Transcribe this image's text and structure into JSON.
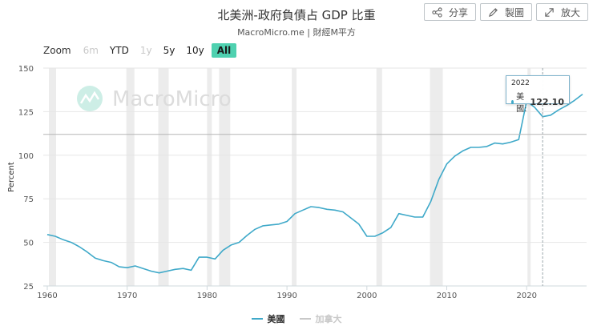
{
  "header": {
    "title": "北美洲-政府負債占 GDP 比重",
    "subtitle": "MacroMicro.me | 財經M平方"
  },
  "toolbar": {
    "share_label": "分享",
    "draw_label": "製圖",
    "expand_label": "放大"
  },
  "zoom": {
    "label": "Zoom",
    "options": [
      {
        "label": "6m",
        "state": "disabled"
      },
      {
        "label": "YTD",
        "state": "normal"
      },
      {
        "label": "1y",
        "state": "disabled"
      },
      {
        "label": "5y",
        "state": "normal"
      },
      {
        "label": "10y",
        "state": "normal"
      },
      {
        "label": "All",
        "state": "active"
      }
    ]
  },
  "watermark": "MacroMicro",
  "tooltip": {
    "year": "2022",
    "series_label": "美國:",
    "value": "122.10"
  },
  "colors": {
    "series_us": "#3fa9c9",
    "series_ca": "#c8c8c8",
    "recession": "#ececec",
    "accent": "#4fd1b0"
  },
  "chart_data": {
    "type": "line",
    "title": "北美洲-政府負債占 GDP 比重",
    "xlabel": "",
    "ylabel": "Percent",
    "xlim": [
      1959.5,
      2027.5
    ],
    "ylim": [
      25,
      150
    ],
    "yticks": [
      25,
      50,
      75,
      100,
      125,
      150
    ],
    "xticks": [
      1960,
      1970,
      1980,
      1990,
      2000,
      2010,
      2020
    ],
    "recessions": [
      [
        1960.2,
        1961.1
      ],
      [
        1969.9,
        1970.9
      ],
      [
        1973.9,
        1975.2
      ],
      [
        1980.0,
        1980.6
      ],
      [
        1981.5,
        1982.9
      ],
      [
        1990.6,
        1991.2
      ],
      [
        2001.2,
        2001.9
      ],
      [
        2007.9,
        2009.5
      ],
      [
        2020.1,
        2020.5
      ]
    ],
    "crosshair": {
      "x": 2022,
      "y": 122.1
    },
    "series": [
      {
        "name": "美國",
        "visible": true,
        "x": [
          1960,
          1961,
          1962,
          1963,
          1964,
          1965,
          1966,
          1967,
          1968,
          1969,
          1970,
          1971,
          1972,
          1973,
          1974,
          1975,
          1976,
          1977,
          1978,
          1979,
          1980,
          1981,
          1982,
          1983,
          1984,
          1985,
          1986,
          1987,
          1988,
          1989,
          1990,
          1991,
          1992,
          1993,
          1994,
          1995,
          1996,
          1997,
          1998,
          1999,
          2000,
          2001,
          2002,
          2003,
          2004,
          2005,
          2006,
          2007,
          2008,
          2009,
          2010,
          2011,
          2012,
          2013,
          2014,
          2015,
          2016,
          2017,
          2018,
          2019,
          2020,
          2021,
          2022,
          2023,
          2024,
          2025,
          2026,
          2027
        ],
        "values": [
          54.5,
          53.5,
          51.5,
          50,
          47.5,
          44.5,
          41,
          39.5,
          38.5,
          36,
          35.5,
          36.5,
          35,
          33.5,
          32.5,
          33.5,
          34.5,
          35,
          34,
          41.5,
          41.5,
          40.5,
          45.5,
          48.5,
          50,
          54,
          57.5,
          59.5,
          60,
          60.5,
          62,
          66.5,
          68.5,
          70.5,
          70,
          69,
          68.5,
          67.5,
          64,
          60.5,
          53.5,
          53.5,
          55.5,
          58.5,
          66.5,
          65.5,
          64.5,
          64.5,
          73.5,
          86,
          95,
          99.5,
          102.5,
          104.5,
          104.5,
          105,
          107,
          106.5,
          107.5,
          109,
          131,
          127.5,
          122.1,
          123,
          126,
          128.5,
          131.5,
          135
        ]
      },
      {
        "name": "加拿大",
        "visible": false,
        "x": [],
        "values": []
      }
    ]
  }
}
